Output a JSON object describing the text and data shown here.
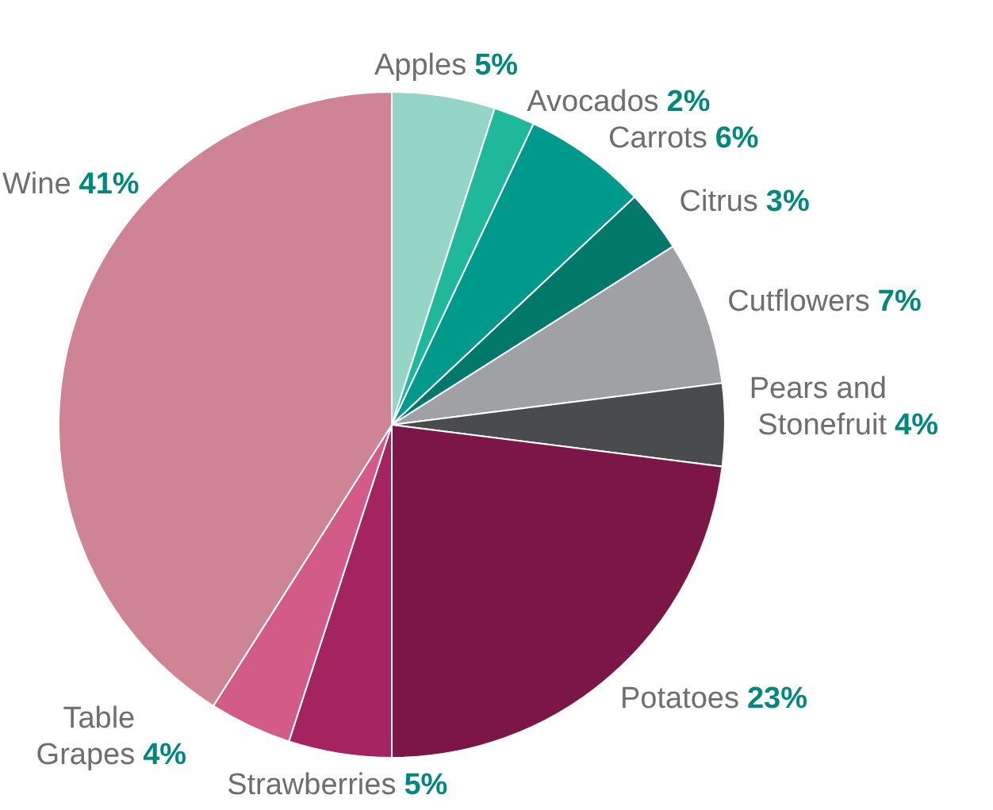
{
  "chart_data": {
    "type": "pie",
    "categories": [
      "Apples",
      "Avocados",
      "Carrots",
      "Citrus",
      "Cutflowers",
      "Pears and Stonefruit",
      "Potatoes",
      "Strawberries",
      "Table Grapes",
      "Wine"
    ],
    "values": [
      5,
      2,
      6,
      3,
      7,
      4,
      23,
      5,
      4,
      41
    ],
    "value_labels": [
      "5%",
      "2%",
      "6%",
      "3%",
      "7%",
      "4%",
      "23%",
      "5%",
      "4%",
      "41%"
    ],
    "colors": [
      "#94d5c6",
      "#1fb89a",
      "#009a8c",
      "#00796b",
      "#a0a1a4",
      "#4a4b4d",
      "#7b1646",
      "#a3245f",
      "#d25c87",
      "#cf8495"
    ],
    "legend": false
  }
}
